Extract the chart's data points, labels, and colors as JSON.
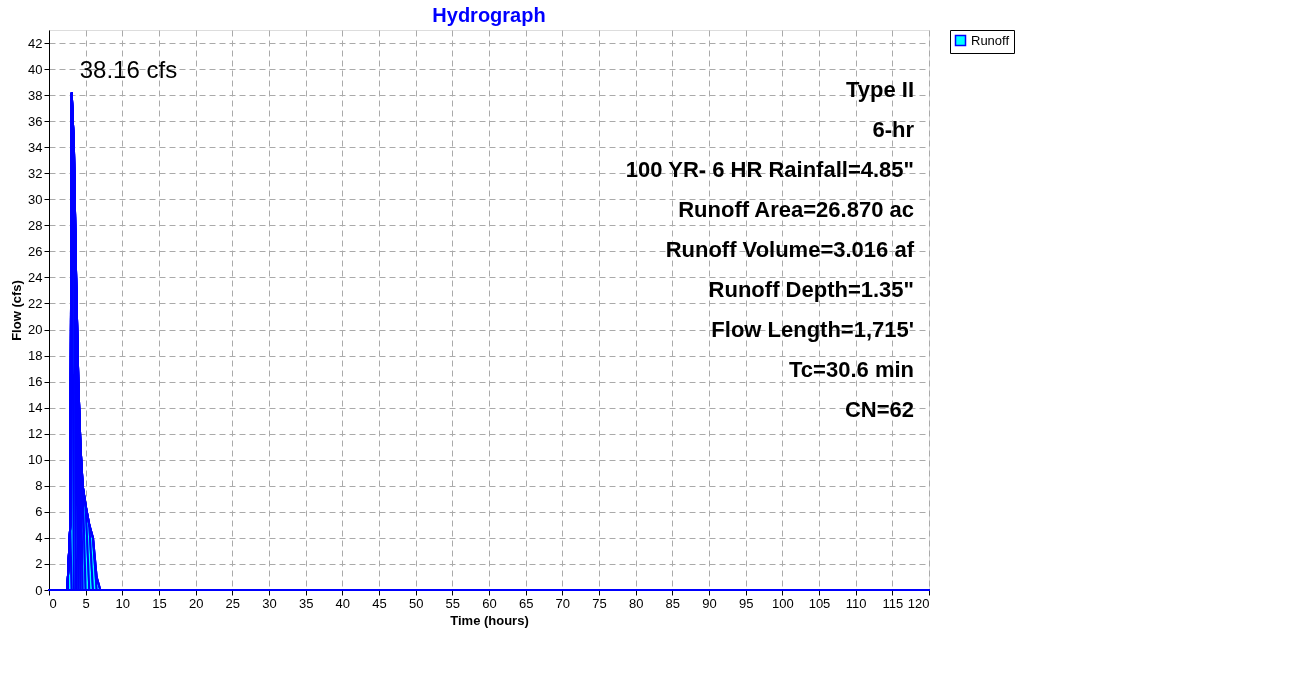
{
  "chart_data": {
    "type": "area",
    "title": "Hydrograph",
    "xlabel": "Time  (hours)",
    "ylabel": "Flow  (cfs)",
    "x": [
      0,
      2.5,
      2.9,
      3.1,
      3.4,
      3.7,
      4.0,
      4.3,
      4.6,
      5.0,
      5.5,
      6.0,
      6.5,
      7.0,
      120
    ],
    "series": [
      {
        "name": "Runoff",
        "color": "#00ffff",
        "values": [
          0,
          0,
          5,
          38.16,
          34,
          24,
          16,
          11,
          8,
          6.5,
          5,
          4,
          1,
          0,
          0
        ]
      }
    ],
    "xlim": [
      0,
      120
    ],
    "xticks": [
      0,
      5,
      10,
      15,
      20,
      25,
      30,
      35,
      40,
      45,
      50,
      55,
      60,
      65,
      70,
      75,
      80,
      85,
      90,
      95,
      100,
      105,
      110,
      115,
      120
    ],
    "ylim": [
      0,
      43
    ],
    "yticks": [
      0,
      2,
      4,
      6,
      8,
      10,
      12,
      14,
      16,
      18,
      20,
      22,
      24,
      26,
      28,
      30,
      32,
      34,
      36,
      38,
      40,
      42
    ],
    "grid": true,
    "legend": "top right",
    "annotations": [
      {
        "text": "38.16 cfs",
        "x": 3.1,
        "y": 38.16
      },
      "Type II",
      "6-hr",
      "100 YR- 6 HR Rainfall=4.85\"",
      "Runoff Area=26.870 ac",
      "Runoff Volume=3.016 af",
      "Runoff Depth=1.35\"",
      "Flow Length=1,715'",
      "Tc=30.6 min",
      "CN=62"
    ]
  }
}
